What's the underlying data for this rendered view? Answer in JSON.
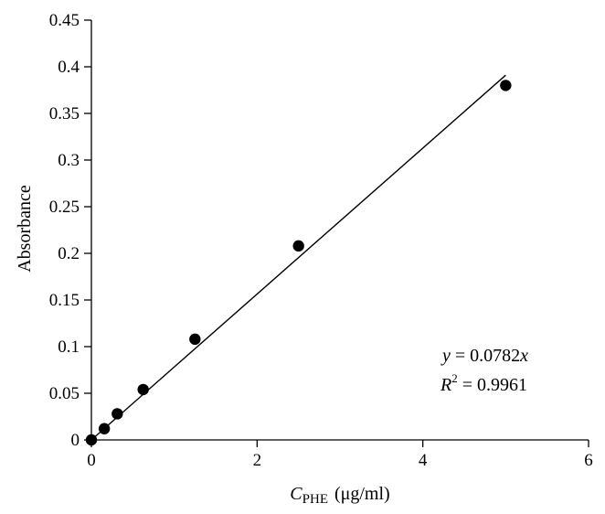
{
  "chart_data": {
    "type": "scatter",
    "xlabel": "C",
    "xlabel_sub": "PHE",
    "xlabel_units": "(μg/ml)",
    "ylabel": "Absorbance",
    "xlim": [
      0,
      6
    ],
    "ylim": [
      0,
      0.45
    ],
    "x_ticks": [
      "0",
      "2",
      "4",
      "6"
    ],
    "y_ticks": [
      "0",
      "0.05",
      "0.1",
      "0.15",
      "0.2",
      "0.25",
      "0.3",
      "0.35",
      "0.4",
      "0.45"
    ],
    "grid": false,
    "points": [
      {
        "x": 0,
        "y": 0
      },
      {
        "x": 0.156,
        "y": 0.012
      },
      {
        "x": 0.3125,
        "y": 0.028
      },
      {
        "x": 0.625,
        "y": 0.054
      },
      {
        "x": 1.25,
        "y": 0.108
      },
      {
        "x": 2.5,
        "y": 0.208
      },
      {
        "x": 5,
        "y": 0.38
      }
    ],
    "trendline": {
      "slope": 0.0782,
      "intercept": 0,
      "x_range": [
        0,
        5
      ]
    },
    "annotation": {
      "equation_lhs": "y",
      "equation_rhs": " = 0.0782",
      "equation_var": "x",
      "r2_base": "R",
      "r2_exp": "2",
      "r2_value": " = 0.9961"
    }
  }
}
